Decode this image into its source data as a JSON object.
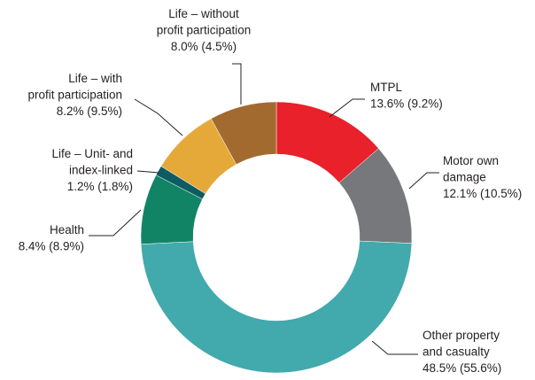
{
  "chart_data": {
    "type": "donut",
    "categories": [
      [
        "MTPL"
      ],
      [
        "Motor own",
        "damage"
      ],
      [
        "Other property",
        "and casualty"
      ],
      [
        "Health"
      ],
      [
        "Life – Unit- and",
        "index-linked"
      ],
      [
        "Life – with",
        "profit participation"
      ],
      [
        "Life – without",
        "profit participation"
      ]
    ],
    "values": [
      13.6,
      12.1,
      48.5,
      8.4,
      1.2,
      8.2,
      8.0
    ],
    "value_labels": [
      "13.6% (9.2%)",
      "12.1% (10.5%)",
      "48.5% (55.6%)",
      "8.4% (8.9%)",
      "1.2% (1.8%)",
      "8.2% (9.5%)",
      "8.0% (4.5%)"
    ],
    "colors": [
      "#e8212b",
      "#77787b",
      "#42a9ad",
      "#128466",
      "#0d5c63",
      "#e5a93a",
      "#a36a2f"
    ]
  }
}
